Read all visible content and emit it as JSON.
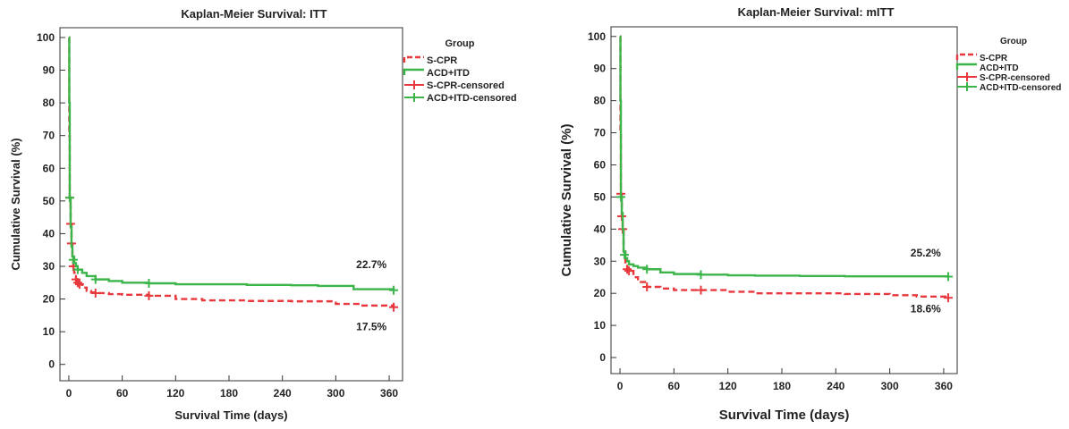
{
  "chart_data": [
    {
      "type": "line",
      "title": "Kaplan-Meier Survival:  ITT",
      "xlabel": "Survival Time (days)",
      "ylabel": "Cumulative Survival (%)",
      "xlim": [
        -10,
        375
      ],
      "ylim": [
        -5,
        103
      ],
      "xticks": [
        "0",
        "60",
        "120",
        "180",
        "240",
        "300",
        "360"
      ],
      "yticks": [
        "0",
        "10",
        "20",
        "30",
        "40",
        "50",
        "60",
        "70",
        "80",
        "90",
        "100"
      ],
      "legend": {
        "title": "Group",
        "position": "top-right",
        "entries": [
          "S-CPR",
          "ACD+ITD",
          "S-CPR-censored",
          "ACD+ITD-censored"
        ]
      },
      "series": [
        {
          "name": "S-CPR",
          "color": "#e8383d",
          "dash": true,
          "x": [
            0,
            0.5,
            1,
            2,
            3,
            4,
            5,
            6,
            8,
            10,
            12,
            15,
            20,
            25,
            30,
            45,
            60,
            90,
            120,
            150,
            200,
            250,
            300,
            330,
            365
          ],
          "y": [
            100,
            70,
            51,
            43,
            37,
            33,
            30,
            28,
            26,
            25,
            24.5,
            23.5,
            22.5,
            22,
            21.8,
            21.5,
            21.3,
            21,
            20,
            19.6,
            19.4,
            19.3,
            18.5,
            18,
            17.5
          ],
          "censored_x": [
            1,
            2,
            3,
            5,
            8,
            10,
            12,
            30,
            90,
            365
          ],
          "censored_y": [
            51,
            43,
            37,
            30,
            26,
            25,
            24.5,
            21.8,
            21,
            17.5
          ]
        },
        {
          "name": "ACD+ITD",
          "color": "#3bb54a",
          "dash": false,
          "x": [
            0,
            0.5,
            1,
            2,
            3,
            4,
            6,
            8,
            10,
            15,
            20,
            30,
            45,
            60,
            90,
            120,
            150,
            200,
            250,
            280,
            320,
            365
          ],
          "y": [
            100,
            80,
            51,
            42,
            36,
            33,
            31,
            30,
            29,
            28,
            27,
            26,
            25.5,
            25,
            24.8,
            24.5,
            24.5,
            24.3,
            24.2,
            24,
            23,
            22.7
          ],
          "censored_x": [
            1,
            5,
            10,
            30,
            90,
            365
          ],
          "censored_y": [
            51,
            32,
            29,
            26,
            24.8,
            22.7
          ]
        }
      ],
      "annotations": [
        {
          "text": "22.7%",
          "x": 340,
          "y": 29.5
        },
        {
          "text": "17.5%",
          "x": 340,
          "y": 10.5
        }
      ]
    },
    {
      "type": "line",
      "title": "Kaplan-Meier Survival:  mITT",
      "xlabel": "Survival Time (days)",
      "ylabel": "Cumulative Survival (%)",
      "xlim": [
        -10,
        375
      ],
      "ylim": [
        -5,
        103
      ],
      "xticks": [
        "0",
        "60",
        "120",
        "180",
        "240",
        "300",
        "360"
      ],
      "yticks": [
        "0",
        "10",
        "20",
        "30",
        "40",
        "50",
        "60",
        "70",
        "80",
        "90",
        "100"
      ],
      "legend": {
        "title": "Group",
        "position": "top-right",
        "entries": [
          "S-CPR",
          "ACD+ITD",
          "S-CPR-censored",
          "ACD+ITD-censored"
        ]
      },
      "series": [
        {
          "name": "S-CPR",
          "color": "#e8383d",
          "dash": true,
          "x": [
            0,
            0.5,
            1,
            2,
            3,
            4,
            6,
            8,
            10,
            15,
            20,
            30,
            45,
            60,
            90,
            120,
            150,
            200,
            250,
            300,
            330,
            365
          ],
          "y": [
            100,
            70,
            51,
            44,
            40,
            33,
            29,
            27.5,
            27,
            25,
            23.5,
            22,
            21.5,
            21,
            21,
            20.5,
            20,
            20,
            19.8,
            19.4,
            19,
            18.6
          ],
          "censored_x": [
            1,
            2,
            3,
            8,
            10,
            30,
            90,
            365
          ],
          "censored_y": [
            51,
            44,
            40,
            27.5,
            27,
            22,
            21,
            18.6
          ]
        },
        {
          "name": "ACD+ITD",
          "color": "#3bb54a",
          "dash": false,
          "x": [
            0,
            0.5,
            1,
            2,
            3,
            4,
            6,
            8,
            10,
            15,
            20,
            30,
            45,
            60,
            90,
            120,
            150,
            200,
            250,
            300,
            365
          ],
          "y": [
            100,
            80,
            50,
            45,
            40,
            33,
            31,
            30,
            29,
            28.5,
            28,
            27.5,
            26.5,
            26,
            25.8,
            25.6,
            25.5,
            25.4,
            25.3,
            25.3,
            25.2
          ],
          "censored_x": [
            1,
            5,
            30,
            90,
            365
          ],
          "censored_y": [
            50,
            32,
            27.5,
            25.8,
            25.2
          ]
        }
      ],
      "annotations": [
        {
          "text": "25.2%",
          "x": 340,
          "y": 31.5
        },
        {
          "text": "18.6%",
          "x": 340,
          "y": 14
        }
      ]
    }
  ]
}
